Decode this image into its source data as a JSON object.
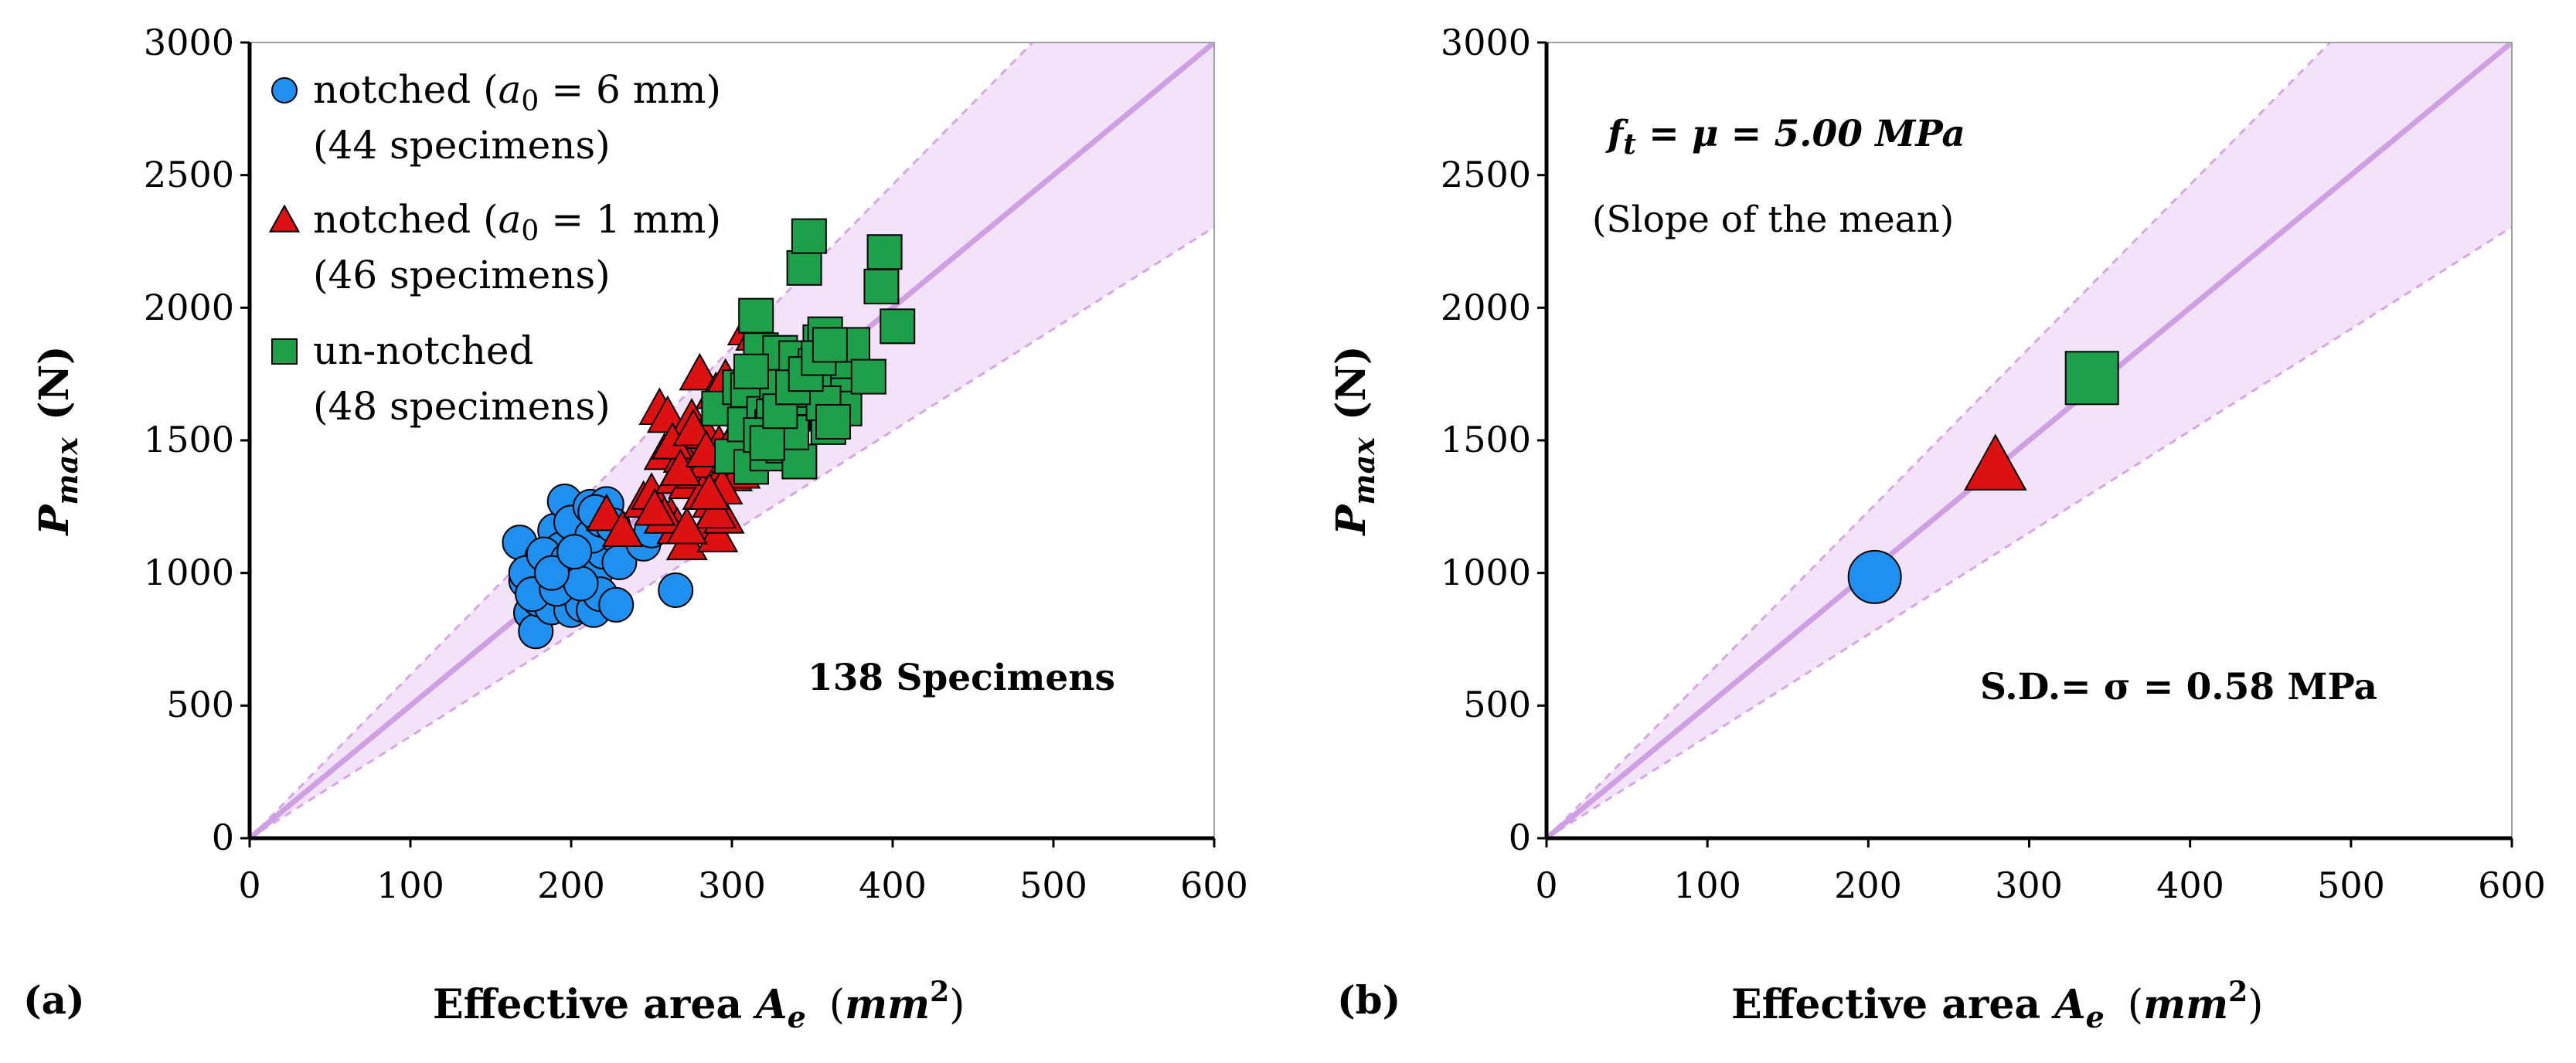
{
  "colors": {
    "band_fill": "#f3e3f8",
    "band_edge": "#d6a6e6",
    "mean_line": "#cf9fe4",
    "notched_6": "#1f8ff0",
    "notched_1": "#dd1111",
    "unnotched": "#1ea04a",
    "marker_edge": "#000000"
  },
  "marker_shapes": {
    "notched_6": "circle",
    "notched_1": "triangle",
    "unnotched": "square"
  },
  "chart_data": [
    {
      "panel_label": "(a)",
      "type": "scatter",
      "xlabel": {
        "main": "Effective area ",
        "var": "A",
        "sub": "e",
        "unit_open": "(",
        "unit": "mm",
        "unit_sup": "2",
        "unit_close": ")"
      },
      "ylabel": {
        "main": "P",
        "sub": "max",
        "unit": "(N)"
      },
      "xlim": [
        0,
        600
      ],
      "ylim": [
        0,
        3000
      ],
      "xticks": [
        "0",
        "100",
        "200",
        "300",
        "400",
        "500",
        "600"
      ],
      "yticks": [
        "0",
        "500",
        "1000",
        "1500",
        "2000",
        "2500",
        "3000"
      ],
      "grid": false,
      "mean_slope": 5.0,
      "band_slopes": [
        3.84,
        6.16
      ],
      "legend_position": "top-left",
      "legend": [
        {
          "series": "notched_6",
          "line1_pre": "notched (",
          "var": "a",
          "sub": "0",
          "line1_post": " = 6 mm)",
          "line2": "(44 specimens)"
        },
        {
          "series": "notched_1",
          "line1_pre": "notched (",
          "var": "a",
          "sub": "0",
          "line1_post": " = 1 mm)",
          "line2": "(46 specimens)"
        },
        {
          "series": "unnotched",
          "line1_pre": "un-notched",
          "var": "",
          "sub": "",
          "line1_post": "",
          "line2": "(48 specimens)"
        }
      ],
      "annotations": [
        {
          "text": "138 Specimens"
        }
      ],
      "series": [
        {
          "key": "notched_6",
          "x": [
            168,
            172,
            175,
            178,
            180,
            182,
            184,
            186,
            188,
            190,
            192,
            194,
            196,
            198,
            200,
            200,
            202,
            205,
            207,
            210,
            212,
            214,
            216,
            218,
            220,
            222,
            225,
            228,
            172,
            176,
            183,
            191,
            198,
            206,
            213,
            219,
            226,
            188,
            202,
            215,
            230,
            245,
            250,
            265
          ],
          "y": [
            1115,
            970,
            850,
            780,
            900,
            1060,
            950,
            1020,
            870,
            1160,
            980,
            1090,
            1270,
            930,
            860,
            1190,
            1030,
            1010,
            880,
            1100,
            1250,
            860,
            1010,
            920,
            1080,
            1260,
            1150,
            880,
            1000,
            920,
            1070,
            940,
            1050,
            960,
            1140,
            1200,
            1180,
            1000,
            1080,
            1230,
            1040,
            1110,
            1160,
            935
          ]
        },
        {
          "key": "notched_1",
          "x": [
            222,
            232,
            245,
            250,
            255,
            258,
            260,
            262,
            265,
            266,
            268,
            270,
            272,
            273,
            275,
            278,
            280,
            282,
            283,
            285,
            286,
            288,
            290,
            291,
            292,
            295,
            296,
            298,
            300,
            302,
            305,
            310,
            315,
            318,
            320,
            258,
            263,
            268,
            276,
            284,
            290,
            294,
            299,
            252,
            272,
            286
          ],
          "y": [
            1220,
            1160,
            1270,
            1300,
            1620,
            1450,
            1590,
            1210,
            1360,
            1170,
            1500,
            1440,
            1110,
            1340,
            1580,
            1380,
            1750,
            1300,
            1530,
            1420,
            1190,
            1270,
            1680,
            1140,
            1480,
            1210,
            1730,
            1410,
            1370,
            1520,
            1380,
            1920,
            1900,
            1690,
            1650,
            1210,
            1490,
            1390,
            1540,
            1460,
            1230,
            1320,
            1440,
            1240,
            1170,
            1300
          ],
          "annotations": []
        },
        {
          "key": "unnotched",
          "x": [
            292,
            300,
            305,
            308,
            310,
            312,
            315,
            318,
            320,
            322,
            325,
            328,
            330,
            332,
            335,
            338,
            340,
            342,
            345,
            348,
            350,
            352,
            355,
            358,
            360,
            362,
            365,
            368,
            370,
            375,
            385,
            393,
            395,
            403,
            312,
            326,
            337,
            344,
            351,
            357,
            363,
            318,
            322,
            330,
            338,
            346,
            354,
            361
          ],
          "y": [
            1620,
            1440,
            1700,
            1560,
            1690,
            1400,
            1970,
            1840,
            1600,
            1450,
            1550,
            1720,
            1830,
            1480,
            1500,
            1600,
            1810,
            1420,
            2150,
            2270,
            1660,
            1780,
            1870,
            1900,
            1550,
            1840,
            1740,
            1670,
            1620,
            1860,
            1740,
            2080,
            2210,
            1930,
            1760,
            1590,
            1530,
            1700,
            1690,
            1640,
            1570,
            1520,
            1490,
            1610,
            1700,
            1750,
            1810,
            1860
          ]
        }
      ]
    },
    {
      "panel_label": "(b)",
      "type": "scatter",
      "xlabel": {
        "main": "Effective area ",
        "var": "A",
        "sub": "e",
        "unit_open": "(",
        "unit": "mm",
        "unit_sup": "2",
        "unit_close": ")"
      },
      "ylabel": {
        "main": "P",
        "sub": "max",
        "unit": "(N)"
      },
      "xlim": [
        0,
        600
      ],
      "ylim": [
        0,
        3000
      ],
      "xticks": [
        "0",
        "100",
        "200",
        "300",
        "400",
        "500",
        "600"
      ],
      "yticks": [
        "0",
        "500",
        "1000",
        "1500",
        "2000",
        "2500",
        "3000"
      ],
      "grid": false,
      "mean_slope": 5.0,
      "band_slopes": [
        3.84,
        6.16
      ],
      "annotations": [
        {
          "text": "f",
          "sub": "t",
          "rest": " = μ = 5.00 MPa"
        },
        {
          "text": "(Slope of the mean)"
        },
        {
          "text": "S.D.= σ = 0.58 MPa"
        }
      ],
      "series": [
        {
          "key": "notched_6",
          "x": [
            204
          ],
          "y": [
            985
          ]
        },
        {
          "key": "notched_1",
          "x": [
            279
          ],
          "y": [
            1405
          ]
        },
        {
          "key": "unnotched",
          "x": [
            339
          ],
          "y": [
            1735
          ]
        }
      ]
    }
  ]
}
